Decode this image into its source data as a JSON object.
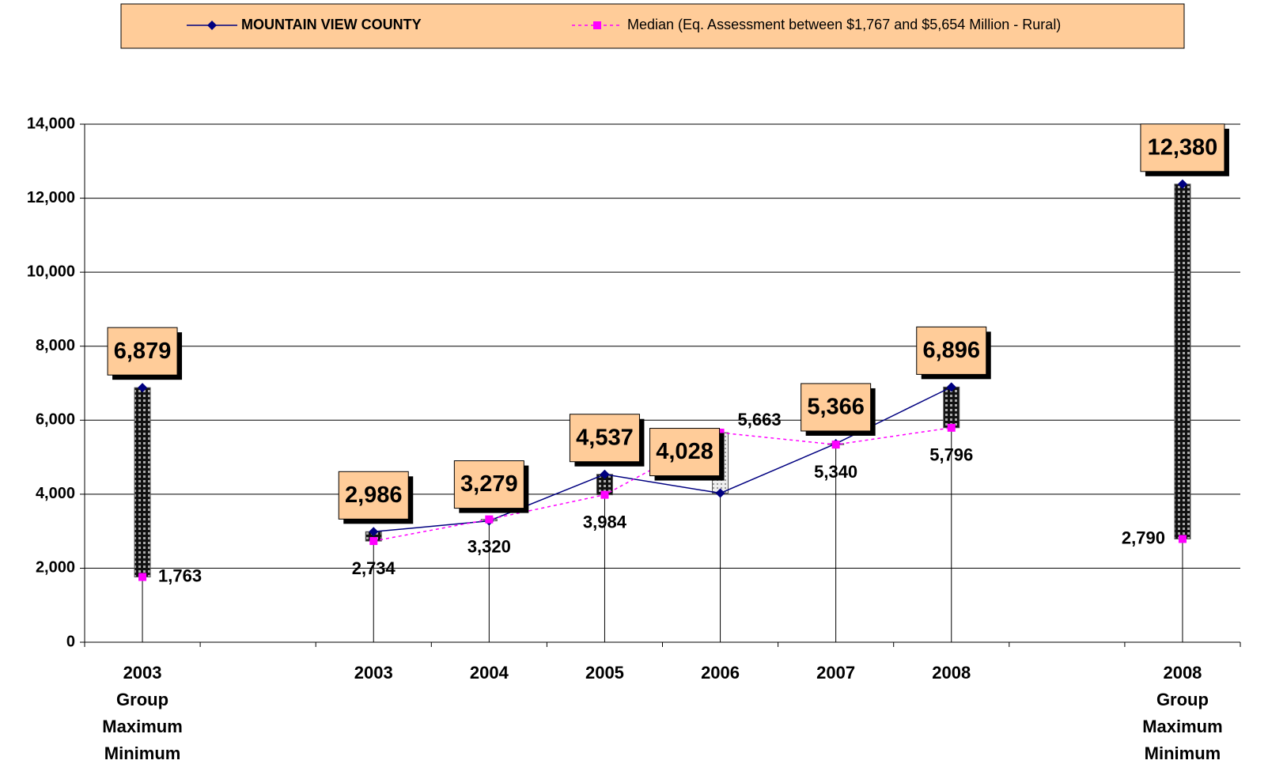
{
  "chart_data": {
    "type": "hilo-line",
    "categories": [
      [
        "2003",
        "Group",
        "Maximum",
        "Minimum"
      ],
      null,
      [
        "2003"
      ],
      [
        "2004"
      ],
      [
        "2005"
      ],
      [
        "2006"
      ],
      [
        "2007"
      ],
      [
        "2008"
      ],
      null,
      [
        "2008",
        "Group",
        "Maximum",
        "Minimum"
      ]
    ],
    "series": [
      {
        "name": "MOUNTAIN VIEW COUNTY",
        "color": "#000080",
        "values": [
          6879,
          null,
          2986,
          3279,
          4537,
          4028,
          5366,
          6896,
          null,
          12380
        ],
        "value_labels": [
          "6,879",
          null,
          "2,986",
          "3,279",
          "4,537",
          "4,028",
          "5,366",
          "6,896",
          null,
          "12,380"
        ]
      },
      {
        "name": "Median (Eq. Assessment between $1,767 and $5,654 Million - Rural)",
        "color": "#FF00FF",
        "values": [
          1763,
          null,
          2734,
          3320,
          3984,
          5663,
          5340,
          5796,
          null,
          2790
        ],
        "value_labels": [
          "1,763",
          null,
          "2,734",
          "3,320",
          "3,984",
          "5,663",
          "5,340",
          "5,796",
          null,
          "2,790"
        ]
      }
    ],
    "ylim": [
      0,
      14000
    ],
    "yticks": [
      0,
      {
        "value": 2000,
        "label": "2,000"
      },
      {
        "value": 4000,
        "label": "4,000"
      },
      {
        "value": 6000,
        "label": "6,000"
      },
      {
        "value": 8000,
        "label": "8,000"
      },
      {
        "value": 10000,
        "label": "10,000"
      },
      {
        "value": 12000,
        "label": "12,000"
      },
      {
        "value": 14000,
        "label": "14,000"
      }
    ],
    "grid": true,
    "legend": "top"
  }
}
